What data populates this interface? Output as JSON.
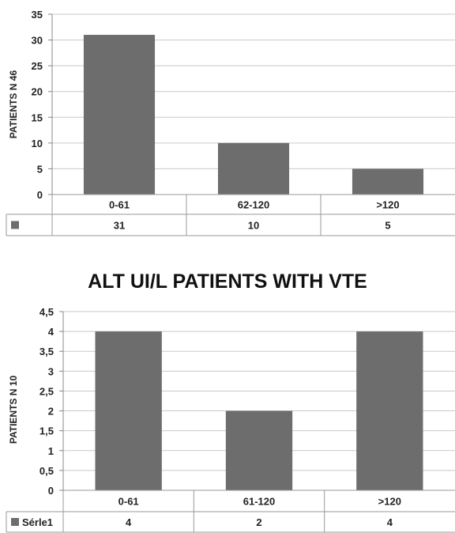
{
  "chart_data": [
    {
      "type": "bar",
      "title": "",
      "ylabel": "PATIENTS N 46",
      "categories": [
        "0-61",
        "62-120",
        ">120"
      ],
      "ylim": [
        0,
        35
      ],
      "yticks": [
        "0",
        "5",
        "10",
        "15",
        "20",
        "25",
        "30",
        "35"
      ],
      "grid": true,
      "series": [
        {
          "name": "",
          "values": [
            31,
            10,
            5
          ]
        }
      ],
      "table_values": [
        "31",
        "10",
        "5"
      ],
      "color": "#6d6d6d"
    },
    {
      "type": "bar",
      "title": "ALT UI/L PATIENTS WITH VTE",
      "ylabel": "PATIENTS N 10",
      "categories": [
        "0-61",
        "61-120",
        ">120"
      ],
      "ylim": [
        0,
        4.5
      ],
      "yticks": [
        "0",
        "0,5",
        "1",
        "1,5",
        "2",
        "2,5",
        "3",
        "3,5",
        "4",
        "4,5"
      ],
      "grid": true,
      "series": [
        {
          "name": "Sérle1",
          "values": [
            4,
            2,
            4
          ]
        }
      ],
      "table_values": [
        "4",
        "2",
        "4"
      ],
      "color": "#6d6d6d"
    }
  ]
}
